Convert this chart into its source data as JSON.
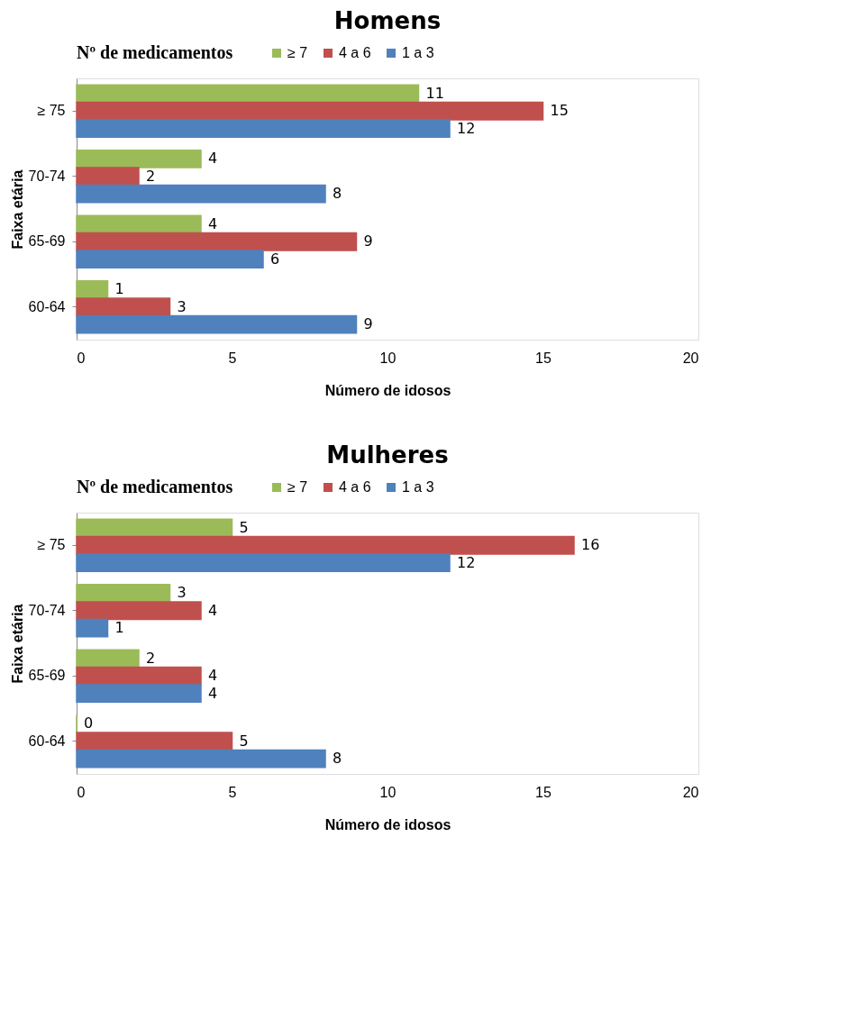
{
  "chart_data": [
    {
      "type": "bar",
      "orientation": "horizontal",
      "title": "Homens",
      "xlabel": "Número de idosos",
      "ylabel": "Faixa etária",
      "legend_title": "Nº de medicamentos",
      "categories": [
        "≥ 75",
        "70-74",
        "65-69",
        "60-64"
      ],
      "series": [
        {
          "name": "≥ 7",
          "color": "#9bbb59",
          "values": [
            11,
            4,
            4,
            1
          ]
        },
        {
          "name": "4 a 6",
          "color": "#c0504d",
          "values": [
            15,
            2,
            9,
            3
          ]
        },
        {
          "name": "1 a 3",
          "color": "#4f81bd",
          "values": [
            12,
            8,
            6,
            9
          ]
        }
      ],
      "xlim": [
        0,
        20
      ],
      "xticks": [
        0,
        5,
        10,
        15,
        20
      ],
      "grid": false,
      "legend": "top",
      "data_labels": true
    },
    {
      "type": "bar",
      "orientation": "horizontal",
      "title": "Mulheres",
      "xlabel": "Número de idosos",
      "ylabel": "Faixa etária",
      "legend_title": "Nº de medicamentos",
      "categories": [
        "≥ 75",
        "70-74",
        "65-69",
        "60-64"
      ],
      "series": [
        {
          "name": "≥ 7",
          "color": "#9bbb59",
          "values": [
            5,
            3,
            2,
            0
          ]
        },
        {
          "name": "4 a 6",
          "color": "#c0504d",
          "values": [
            16,
            4,
            4,
            5
          ]
        },
        {
          "name": "1 a 3",
          "color": "#4f81bd",
          "values": [
            12,
            1,
            4,
            8
          ]
        }
      ],
      "xlim": [
        0,
        20
      ],
      "xticks": [
        0,
        5,
        10,
        15,
        20
      ],
      "grid": false,
      "legend": "top",
      "data_labels": true
    }
  ]
}
